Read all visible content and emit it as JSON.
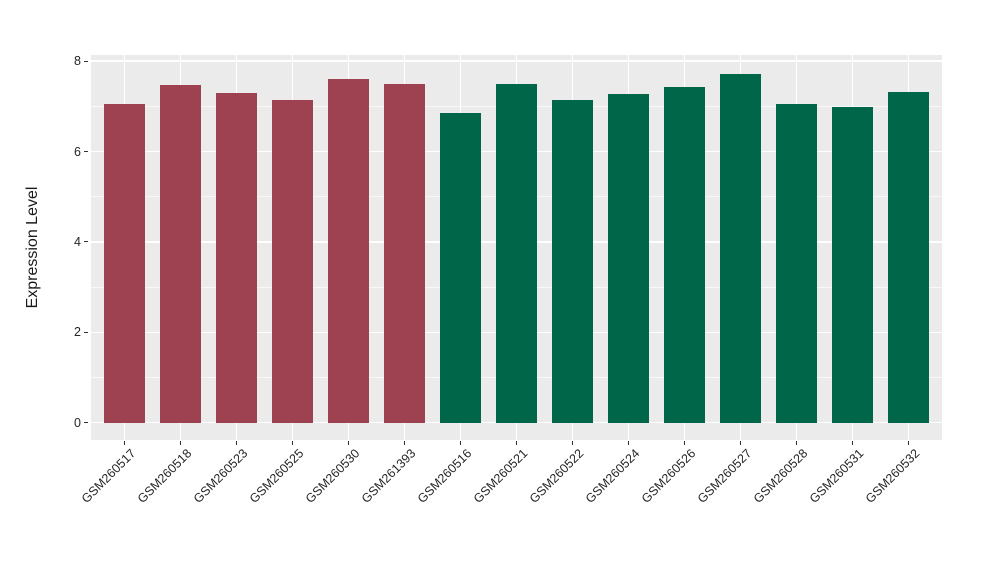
{
  "chart_data": {
    "type": "bar",
    "title": "",
    "xlabel": "",
    "ylabel": "Expression Level",
    "ylim": [
      0,
      8.15
    ],
    "yticks": [
      0,
      2,
      4,
      6,
      8
    ],
    "yticks_minor": [
      1,
      3,
      5,
      7
    ],
    "grid": true,
    "legend_position": "none",
    "categories": [
      "GSM260517",
      "GSM260518",
      "GSM260523",
      "GSM260525",
      "GSM260530",
      "GSM261393",
      "GSM260516",
      "GSM260521",
      "GSM260522",
      "GSM260524",
      "GSM260526",
      "GSM260527",
      "GSM260528",
      "GSM260531",
      "GSM260532"
    ],
    "values": [
      7.05,
      7.48,
      7.29,
      7.15,
      7.61,
      7.5,
      6.85,
      7.49,
      7.15,
      7.27,
      7.43,
      7.71,
      7.05,
      6.99,
      7.31
    ],
    "bar_colors": [
      "#9e4252",
      "#9e4252",
      "#9e4252",
      "#9e4252",
      "#9e4252",
      "#9e4252",
      "#00664a",
      "#00664a",
      "#00664a",
      "#00664a",
      "#00664a",
      "#00664a",
      "#00664a",
      "#00664a",
      "#00664a"
    ]
  },
  "colors": {
    "group_1": "#9e4252",
    "group_2": "#00664a",
    "panel_background": "#ebebeb",
    "grid_major": "#ffffff",
    "tick": "#333333",
    "text": "#262626"
  }
}
